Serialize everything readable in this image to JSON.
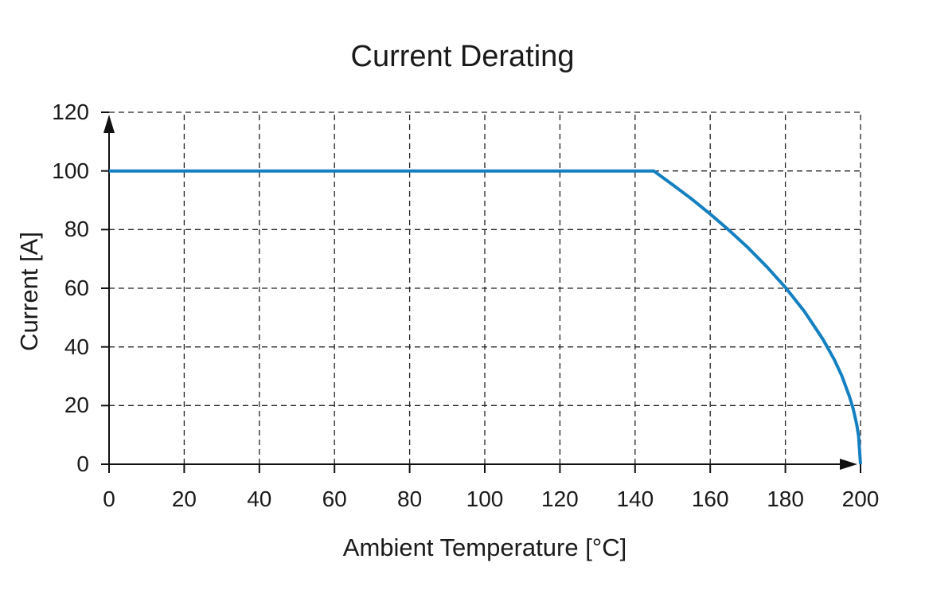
{
  "colors": {
    "background": "#ffffff",
    "text": "#1a1a1a",
    "grid": "#222222",
    "axis": "#111111",
    "line": "#1480c2"
  },
  "chart_data": {
    "type": "line",
    "title": "Current Derating",
    "xlabel": "Ambient Temperature [°C]",
    "ylabel": "Current [A]",
    "xlim": [
      0,
      200
    ],
    "ylim": [
      0,
      120
    ],
    "x_ticks": [
      0,
      20,
      40,
      60,
      80,
      100,
      120,
      140,
      160,
      180,
      200
    ],
    "y_ticks": [
      0,
      20,
      40,
      60,
      80,
      100,
      120
    ],
    "grid": "dashed",
    "legend_position": "none",
    "axis_style": "arrow-tipped",
    "series": [
      {
        "color": "#1480c2",
        "line_width": 4,
        "points": [
          [
            0,
            100
          ],
          [
            20,
            100
          ],
          [
            40,
            100
          ],
          [
            60,
            100
          ],
          [
            80,
            100
          ],
          [
            100,
            100
          ],
          [
            120,
            100
          ],
          [
            140,
            100
          ],
          [
            145,
            100
          ],
          [
            150,
            95.3
          ],
          [
            155,
            90.5
          ],
          [
            160,
            85.3
          ],
          [
            165,
            79.8
          ],
          [
            170,
            73.9
          ],
          [
            175,
            67.4
          ],
          [
            180,
            60.3
          ],
          [
            185,
            52.2
          ],
          [
            190,
            42.6
          ],
          [
            193,
            35.7
          ],
          [
            195,
            30.2
          ],
          [
            197,
            23.3
          ],
          [
            198,
            19.1
          ],
          [
            199,
            13.5
          ],
          [
            199.5,
            9.5
          ],
          [
            200,
            0
          ]
        ]
      }
    ]
  }
}
